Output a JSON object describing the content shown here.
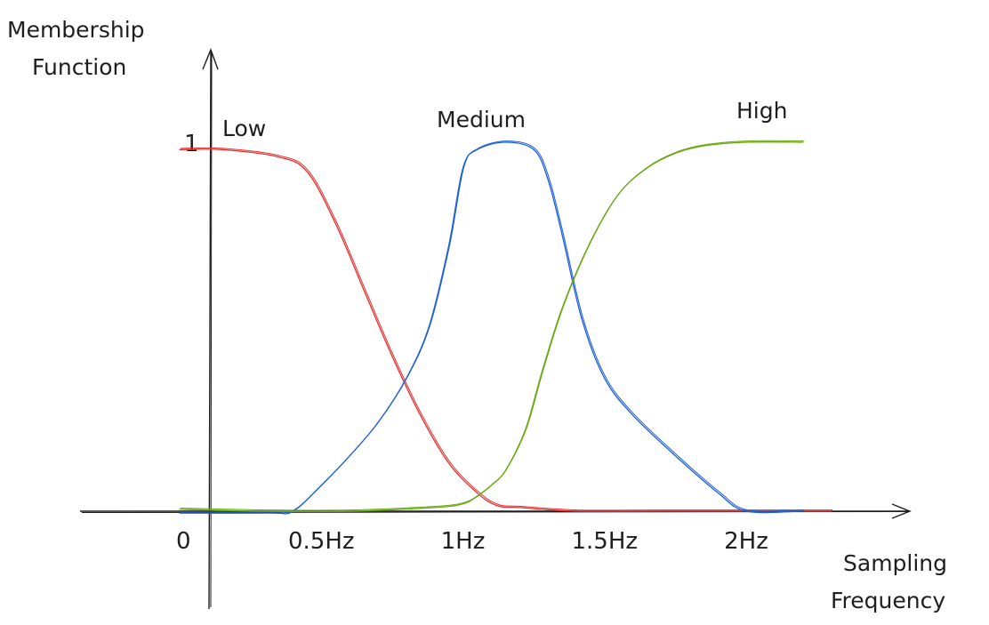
{
  "chart_data": {
    "type": "line",
    "ylabel_lines": [
      "Membership",
      "Function"
    ],
    "xlabel_lines": [
      "Sampling",
      "Frequency"
    ],
    "x_ticks": [
      {
        "value": 0.5,
        "label": "0.5Hz"
      },
      {
        "value": 1.0,
        "label": "1Hz"
      },
      {
        "value": 1.5,
        "label": "1.5Hz"
      },
      {
        "value": 2.0,
        "label": "2Hz"
      }
    ],
    "origin_label": "0",
    "y_ticks": [
      {
        "value": 1,
        "label": "1"
      }
    ],
    "xlim": [
      0,
      2.3
    ],
    "ylim": [
      0,
      1
    ],
    "grid": false,
    "legend": "labels placed next to curves",
    "series": [
      {
        "name": "Low",
        "color": "#e03131",
        "x": [
          0.0,
          0.15,
          0.35,
          0.45,
          0.55,
          0.65,
          0.75,
          0.85,
          0.95,
          1.05,
          1.12,
          1.2,
          1.4,
          1.7,
          2.0,
          2.3
        ],
        "y": [
          0.98,
          0.98,
          0.96,
          0.92,
          0.78,
          0.6,
          0.42,
          0.26,
          0.13,
          0.05,
          0.015,
          0.01,
          0.0,
          0.0,
          0.0,
          0.0
        ]
      },
      {
        "name": "Medium",
        "color": "#1c5ed6",
        "x": [
          0.0,
          0.32,
          0.4,
          0.5,
          0.6,
          0.7,
          0.8,
          0.88,
          0.95,
          1.0,
          1.05,
          1.15,
          1.25,
          1.3,
          1.35,
          1.42,
          1.5,
          1.6,
          1.75,
          1.9,
          2.0,
          2.2
        ],
        "y": [
          -0.005,
          -0.005,
          0.0,
          0.07,
          0.15,
          0.24,
          0.36,
          0.5,
          0.72,
          0.93,
          0.98,
          1.0,
          0.98,
          0.9,
          0.75,
          0.52,
          0.36,
          0.26,
          0.15,
          0.05,
          0.0,
          0.0
        ]
      },
      {
        "name": "High",
        "color": "#66a80f",
        "x": [
          0.0,
          0.3,
          0.6,
          0.9,
          1.0,
          1.05,
          1.1,
          1.15,
          1.22,
          1.28,
          1.35,
          1.45,
          1.55,
          1.65,
          1.75,
          1.85,
          2.0,
          2.2
        ],
        "y": [
          0.005,
          0.0,
          0.0,
          0.01,
          0.02,
          0.04,
          0.07,
          0.11,
          0.22,
          0.38,
          0.55,
          0.73,
          0.86,
          0.93,
          0.97,
          0.99,
          1.0,
          1.0
        ]
      }
    ]
  }
}
